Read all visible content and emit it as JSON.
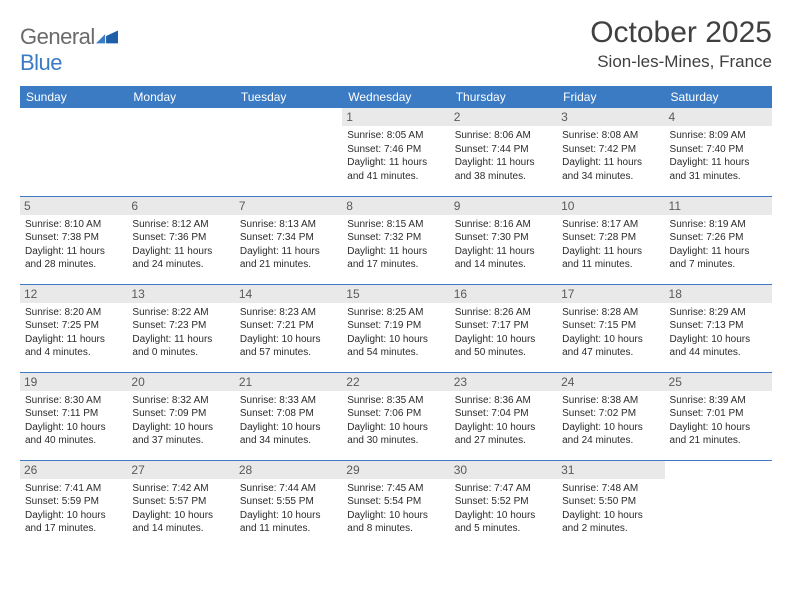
{
  "logo": {
    "word1": "General",
    "word2": "Blue"
  },
  "header": {
    "month": "October 2025",
    "location": "Sion-les-Mines, France"
  },
  "style": {
    "header_bg": "#3b7bc4",
    "header_fg": "#ffffff",
    "daynum_bg": "#e9e9e9",
    "border_color": "#3b7bc4",
    "text_color": "#2b2b2b",
    "title_color": "#404040",
    "logo_gray": "#6a6a6a",
    "logo_blue": "#3b7bc4",
    "month_fontsize": 30,
    "location_fontsize": 17,
    "weekday_fontsize": 12,
    "daynum_fontsize": 12,
    "body_fontsize": 10
  },
  "weekdays": [
    "Sunday",
    "Monday",
    "Tuesday",
    "Wednesday",
    "Thursday",
    "Friday",
    "Saturday"
  ],
  "weeks": [
    [
      null,
      null,
      null,
      {
        "n": "1",
        "sr": "8:05 AM",
        "ss": "7:46 PM",
        "dl": "11 hours and 41 minutes."
      },
      {
        "n": "2",
        "sr": "8:06 AM",
        "ss": "7:44 PM",
        "dl": "11 hours and 38 minutes."
      },
      {
        "n": "3",
        "sr": "8:08 AM",
        "ss": "7:42 PM",
        "dl": "11 hours and 34 minutes."
      },
      {
        "n": "4",
        "sr": "8:09 AM",
        "ss": "7:40 PM",
        "dl": "11 hours and 31 minutes."
      }
    ],
    [
      {
        "n": "5",
        "sr": "8:10 AM",
        "ss": "7:38 PM",
        "dl": "11 hours and 28 minutes."
      },
      {
        "n": "6",
        "sr": "8:12 AM",
        "ss": "7:36 PM",
        "dl": "11 hours and 24 minutes."
      },
      {
        "n": "7",
        "sr": "8:13 AM",
        "ss": "7:34 PM",
        "dl": "11 hours and 21 minutes."
      },
      {
        "n": "8",
        "sr": "8:15 AM",
        "ss": "7:32 PM",
        "dl": "11 hours and 17 minutes."
      },
      {
        "n": "9",
        "sr": "8:16 AM",
        "ss": "7:30 PM",
        "dl": "11 hours and 14 minutes."
      },
      {
        "n": "10",
        "sr": "8:17 AM",
        "ss": "7:28 PM",
        "dl": "11 hours and 11 minutes."
      },
      {
        "n": "11",
        "sr": "8:19 AM",
        "ss": "7:26 PM",
        "dl": "11 hours and 7 minutes."
      }
    ],
    [
      {
        "n": "12",
        "sr": "8:20 AM",
        "ss": "7:25 PM",
        "dl": "11 hours and 4 minutes."
      },
      {
        "n": "13",
        "sr": "8:22 AM",
        "ss": "7:23 PM",
        "dl": "11 hours and 0 minutes."
      },
      {
        "n": "14",
        "sr": "8:23 AM",
        "ss": "7:21 PM",
        "dl": "10 hours and 57 minutes."
      },
      {
        "n": "15",
        "sr": "8:25 AM",
        "ss": "7:19 PM",
        "dl": "10 hours and 54 minutes."
      },
      {
        "n": "16",
        "sr": "8:26 AM",
        "ss": "7:17 PM",
        "dl": "10 hours and 50 minutes."
      },
      {
        "n": "17",
        "sr": "8:28 AM",
        "ss": "7:15 PM",
        "dl": "10 hours and 47 minutes."
      },
      {
        "n": "18",
        "sr": "8:29 AM",
        "ss": "7:13 PM",
        "dl": "10 hours and 44 minutes."
      }
    ],
    [
      {
        "n": "19",
        "sr": "8:30 AM",
        "ss": "7:11 PM",
        "dl": "10 hours and 40 minutes."
      },
      {
        "n": "20",
        "sr": "8:32 AM",
        "ss": "7:09 PM",
        "dl": "10 hours and 37 minutes."
      },
      {
        "n": "21",
        "sr": "8:33 AM",
        "ss": "7:08 PM",
        "dl": "10 hours and 34 minutes."
      },
      {
        "n": "22",
        "sr": "8:35 AM",
        "ss": "7:06 PM",
        "dl": "10 hours and 30 minutes."
      },
      {
        "n": "23",
        "sr": "8:36 AM",
        "ss": "7:04 PM",
        "dl": "10 hours and 27 minutes."
      },
      {
        "n": "24",
        "sr": "8:38 AM",
        "ss": "7:02 PM",
        "dl": "10 hours and 24 minutes."
      },
      {
        "n": "25",
        "sr": "8:39 AM",
        "ss": "7:01 PM",
        "dl": "10 hours and 21 minutes."
      }
    ],
    [
      {
        "n": "26",
        "sr": "7:41 AM",
        "ss": "5:59 PM",
        "dl": "10 hours and 17 minutes."
      },
      {
        "n": "27",
        "sr": "7:42 AM",
        "ss": "5:57 PM",
        "dl": "10 hours and 14 minutes."
      },
      {
        "n": "28",
        "sr": "7:44 AM",
        "ss": "5:55 PM",
        "dl": "10 hours and 11 minutes."
      },
      {
        "n": "29",
        "sr": "7:45 AM",
        "ss": "5:54 PM",
        "dl": "10 hours and 8 minutes."
      },
      {
        "n": "30",
        "sr": "7:47 AM",
        "ss": "5:52 PM",
        "dl": "10 hours and 5 minutes."
      },
      {
        "n": "31",
        "sr": "7:48 AM",
        "ss": "5:50 PM",
        "dl": "10 hours and 2 minutes."
      },
      null
    ]
  ],
  "labels": {
    "sunrise": "Sunrise: ",
    "sunset": "Sunset: ",
    "daylight": "Daylight: "
  }
}
